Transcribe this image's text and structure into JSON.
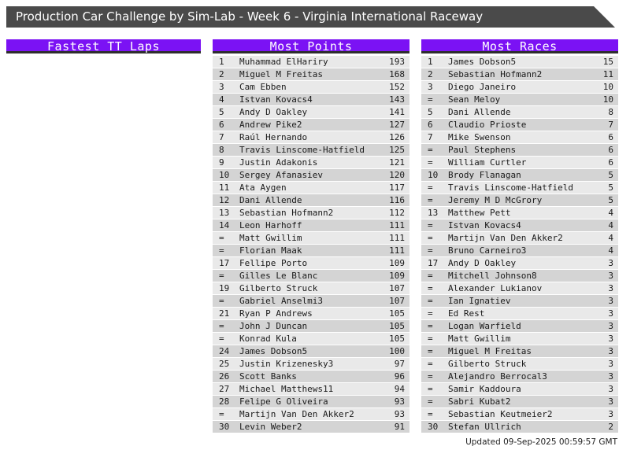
{
  "title": "Production Car Challenge by Sim-Lab - Week 6 - Virginia International Raceway",
  "footer": {
    "updated": "Updated 09-Sep-2025 00:59:57 GMT"
  },
  "colors": {
    "accent_purple": "#7b12f4",
    "titlebar_gray": "#4a4a4a",
    "header_border": "#2e2e2e",
    "row_light": "#e9e9e9",
    "row_dark": "#d4d4d4",
    "text_dark": "#1a1a1a"
  },
  "columns": [
    {
      "header": "Fastest TT Laps",
      "rows": []
    },
    {
      "header": "Most Points",
      "rows": [
        {
          "rank": "1",
          "name": "Muhammad ElHariry",
          "value": "193"
        },
        {
          "rank": "2",
          "name": "Miguel M Freitas",
          "value": "168"
        },
        {
          "rank": "3",
          "name": "Cam Ebben",
          "value": "152"
        },
        {
          "rank": "4",
          "name": "Istvan Kovacs4",
          "value": "143"
        },
        {
          "rank": "5",
          "name": "Andy D Oakley",
          "value": "141"
        },
        {
          "rank": "6",
          "name": "Andrew Pike2",
          "value": "127"
        },
        {
          "rank": "7",
          "name": "Raúl Hernando",
          "value": "126"
        },
        {
          "rank": "8",
          "name": "Travis Linscome-Hatfield",
          "value": "125"
        },
        {
          "rank": "9",
          "name": "Justin Adakonis",
          "value": "121"
        },
        {
          "rank": "10",
          "name": "Sergey Afanasiev",
          "value": "120"
        },
        {
          "rank": "11",
          "name": "Ata Aygen",
          "value": "117"
        },
        {
          "rank": "12",
          "name": "Dani Allende",
          "value": "116"
        },
        {
          "rank": "13",
          "name": "Sebastian Hofmann2",
          "value": "112"
        },
        {
          "rank": "14",
          "name": "Leon Harhoff",
          "value": "111"
        },
        {
          "rank": "=",
          "name": "Matt Gwillim",
          "value": "111"
        },
        {
          "rank": "=",
          "name": "Florian Maak",
          "value": "111"
        },
        {
          "rank": "17",
          "name": "Fellipe Porto",
          "value": "109"
        },
        {
          "rank": "=",
          "name": "Gilles Le Blanc",
          "value": "109"
        },
        {
          "rank": "19",
          "name": "Gilberto Struck",
          "value": "107"
        },
        {
          "rank": "=",
          "name": "Gabriel Anselmi3",
          "value": "107"
        },
        {
          "rank": "21",
          "name": "Ryan P Andrews",
          "value": "105"
        },
        {
          "rank": "=",
          "name": "John J Duncan",
          "value": "105"
        },
        {
          "rank": "=",
          "name": "Konrad Kula",
          "value": "105"
        },
        {
          "rank": "24",
          "name": "James Dobson5",
          "value": "100"
        },
        {
          "rank": "25",
          "name": "Justin Krizenesky3",
          "value": "97"
        },
        {
          "rank": "26",
          "name": "Scott Banks",
          "value": "96"
        },
        {
          "rank": "27",
          "name": "Michael Matthews11",
          "value": "94"
        },
        {
          "rank": "28",
          "name": "Felipe G Oliveira",
          "value": "93"
        },
        {
          "rank": "=",
          "name": "Martijn Van Den Akker2",
          "value": "93"
        },
        {
          "rank": "30",
          "name": "Levin Weber2",
          "value": "91"
        }
      ]
    },
    {
      "header": "Most Races",
      "rows": [
        {
          "rank": "1",
          "name": "James Dobson5",
          "value": "15"
        },
        {
          "rank": "2",
          "name": "Sebastian Hofmann2",
          "value": "11"
        },
        {
          "rank": "3",
          "name": "Diego Janeiro",
          "value": "10"
        },
        {
          "rank": "=",
          "name": "Sean Meloy",
          "value": "10"
        },
        {
          "rank": "5",
          "name": "Dani Allende",
          "value": "8"
        },
        {
          "rank": "6",
          "name": "Claudio Prioste",
          "value": "7"
        },
        {
          "rank": "7",
          "name": "Mike Swenson",
          "value": "6"
        },
        {
          "rank": "=",
          "name": "Paul Stephens",
          "value": "6"
        },
        {
          "rank": "=",
          "name": "William Curtler",
          "value": "6"
        },
        {
          "rank": "10",
          "name": "Brody Flanagan",
          "value": "5"
        },
        {
          "rank": "=",
          "name": "Travis Linscome-Hatfield",
          "value": "5"
        },
        {
          "rank": "=",
          "name": "Jeremy M D McGrory",
          "value": "5"
        },
        {
          "rank": "13",
          "name": "Matthew Pett",
          "value": "4"
        },
        {
          "rank": "=",
          "name": "Istvan Kovacs4",
          "value": "4"
        },
        {
          "rank": "=",
          "name": "Martijn Van Den Akker2",
          "value": "4"
        },
        {
          "rank": "=",
          "name": "Bruno Carneiro3",
          "value": "4"
        },
        {
          "rank": "17",
          "name": "Andy D Oakley",
          "value": "3"
        },
        {
          "rank": "=",
          "name": "Mitchell Johnson8",
          "value": "3"
        },
        {
          "rank": "=",
          "name": "Alexander Lukianov",
          "value": "3"
        },
        {
          "rank": "=",
          "name": "Ian Ignatiev",
          "value": "3"
        },
        {
          "rank": "=",
          "name": "Ed Rest",
          "value": "3"
        },
        {
          "rank": "=",
          "name": "Logan Warfield",
          "value": "3"
        },
        {
          "rank": "=",
          "name": "Matt Gwillim",
          "value": "3"
        },
        {
          "rank": "=",
          "name": "Miguel M Freitas",
          "value": "3"
        },
        {
          "rank": "=",
          "name": "Gilberto Struck",
          "value": "3"
        },
        {
          "rank": "=",
          "name": "Alejandro Berrocal3",
          "value": "3"
        },
        {
          "rank": "=",
          "name": "Samir Kaddoura",
          "value": "3"
        },
        {
          "rank": "=",
          "name": "Sabri Kubat2",
          "value": "3"
        },
        {
          "rank": "=",
          "name": "Sebastian Keutmeier2",
          "value": "3"
        },
        {
          "rank": "30",
          "name": "Stefan Ullrich",
          "value": "2"
        }
      ]
    }
  ]
}
